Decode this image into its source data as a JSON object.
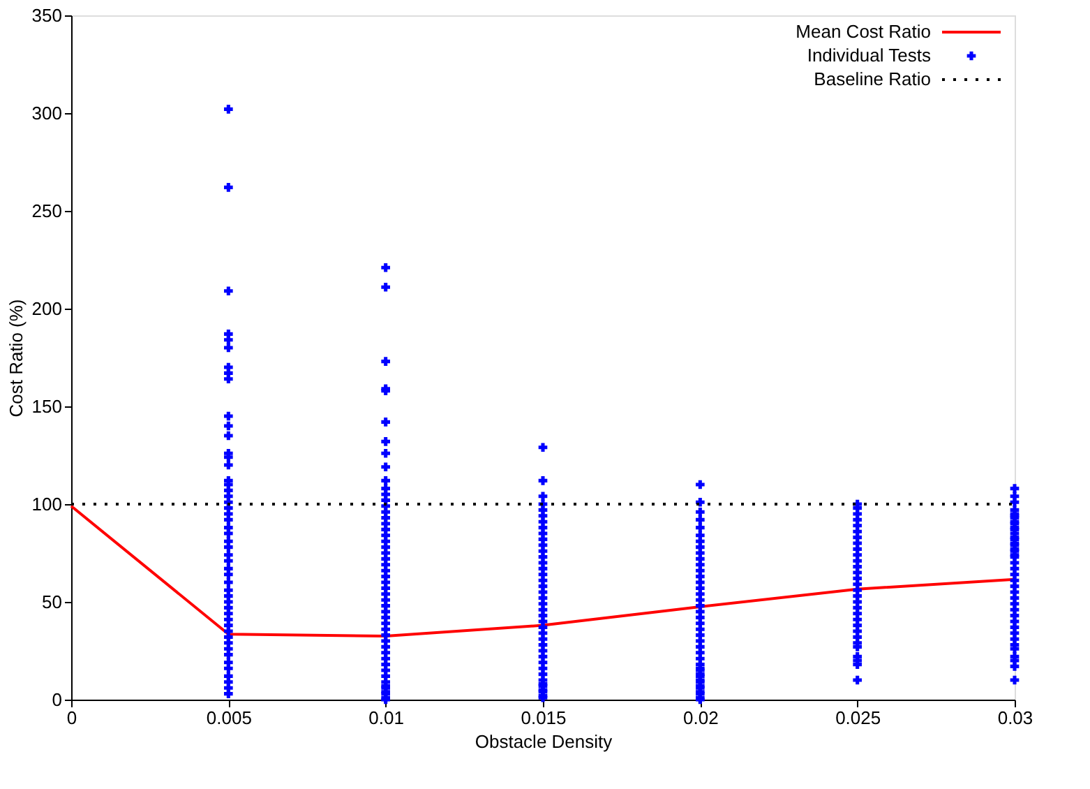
{
  "chart_data": {
    "type": "scatter",
    "xlabel": "Obstacle Density",
    "ylabel": "Cost Ratio (%)",
    "xlim": [
      0,
      0.03
    ],
    "xticks": [
      0,
      0.005,
      0.01,
      0.015,
      0.02,
      0.025,
      0.03
    ],
    "ylim": [
      0,
      350
    ],
    "yticks": [
      0,
      50,
      100,
      150,
      200,
      250,
      300,
      350
    ],
    "grid": false,
    "legend": "top right",
    "series": [
      {
        "name": "Mean Cost Ratio",
        "type": "line",
        "color": "#ff0000",
        "marker": "none",
        "line_style": "solid",
        "x": [
          0,
          0.005,
          0.01,
          0.015,
          0.02,
          0.025,
          0.03
        ],
        "values": [
          99,
          33.5,
          32.5,
          38,
          47.5,
          56.5,
          61.5
        ]
      },
      {
        "name": "Individual Tests",
        "color": "#0000ff",
        "marker": "cross",
        "x": [
          0.005,
          0.005,
          0.005,
          0.005,
          0.005,
          0.005,
          0.005,
          0.005,
          0.005,
          0.005,
          0.005,
          0.005,
          0.005,
          0.005,
          0.005,
          0.005,
          0.005,
          0.005,
          0.005,
          0.005,
          0.005,
          0.005,
          0.005,
          0.005,
          0.005,
          0.005,
          0.005,
          0.005,
          0.005,
          0.005,
          0.005,
          0.005,
          0.005,
          0.005,
          0.005,
          0.005,
          0.005,
          0.005,
          0.005,
          0.005,
          0.005,
          0.005,
          0.005,
          0.005,
          0.005,
          0.005,
          0.005,
          0.005,
          0.005,
          0.005,
          0.01,
          0.01,
          0.01,
          0.01,
          0.01,
          0.01,
          0.01,
          0.01,
          0.01,
          0.01,
          0.01,
          0.01,
          0.01,
          0.01,
          0.01,
          0.01,
          0.01,
          0.01,
          0.01,
          0.01,
          0.01,
          0.01,
          0.01,
          0.01,
          0.01,
          0.01,
          0.01,
          0.01,
          0.01,
          0.01,
          0.01,
          0.01,
          0.01,
          0.01,
          0.01,
          0.01,
          0.01,
          0.01,
          0.01,
          0.01,
          0.01,
          0.01,
          0.01,
          0.01,
          0.01,
          0.01,
          0.01,
          0.01,
          0.01,
          0.01,
          0.015,
          0.015,
          0.015,
          0.015,
          0.015,
          0.015,
          0.015,
          0.015,
          0.015,
          0.015,
          0.015,
          0.015,
          0.015,
          0.015,
          0.015,
          0.015,
          0.015,
          0.015,
          0.015,
          0.015,
          0.015,
          0.015,
          0.015,
          0.015,
          0.015,
          0.015,
          0.015,
          0.015,
          0.015,
          0.015,
          0.015,
          0.015,
          0.015,
          0.015,
          0.015,
          0.015,
          0.015,
          0.015,
          0.015,
          0.015,
          0.02,
          0.02,
          0.02,
          0.02,
          0.02,
          0.02,
          0.02,
          0.02,
          0.02,
          0.02,
          0.02,
          0.02,
          0.02,
          0.02,
          0.02,
          0.02,
          0.02,
          0.02,
          0.02,
          0.02,
          0.02,
          0.02,
          0.02,
          0.02,
          0.02,
          0.02,
          0.02,
          0.02,
          0.02,
          0.02,
          0.02,
          0.02,
          0.02,
          0.02,
          0.02,
          0.02,
          0.02,
          0.02,
          0.02,
          0.02,
          0.025,
          0.025,
          0.025,
          0.025,
          0.025,
          0.025,
          0.025,
          0.025,
          0.025,
          0.025,
          0.025,
          0.025,
          0.025,
          0.025,
          0.025,
          0.025,
          0.025,
          0.025,
          0.025,
          0.025,
          0.025,
          0.025,
          0.025,
          0.025,
          0.025,
          0.025,
          0.025,
          0.025,
          0.025,
          0.025,
          0.03,
          0.03,
          0.03,
          0.03,
          0.03,
          0.03,
          0.03,
          0.03,
          0.03,
          0.03,
          0.03,
          0.03,
          0.03,
          0.03,
          0.03,
          0.03,
          0.03,
          0.03,
          0.03,
          0.03,
          0.03,
          0.03,
          0.03,
          0.03,
          0.03,
          0.03,
          0.03,
          0.03,
          0.03,
          0.03,
          0.03,
          0.03,
          0.03,
          0.03,
          0.03,
          0.03,
          0.03,
          0.03,
          0.03,
          0.03
        ],
        "values": [
          302,
          262,
          209,
          187,
          184,
          180,
          170,
          167,
          164,
          145,
          140,
          135,
          126,
          124,
          120,
          112,
          110,
          107,
          104,
          101,
          98,
          95,
          92,
          88,
          85,
          81,
          78,
          74,
          71,
          67,
          64,
          60,
          56,
          53,
          50,
          47,
          44,
          41,
          38,
          35,
          32,
          29,
          26,
          23,
          19,
          16,
          12,
          9,
          6,
          3,
          221,
          211,
          173,
          159,
          158,
          142,
          132,
          126,
          119,
          112,
          108,
          105,
          102,
          99,
          96,
          93,
          90,
          87,
          84,
          81,
          78,
          75,
          72,
          69,
          66,
          63,
          60,
          57,
          54,
          51,
          48,
          45,
          42,
          39,
          36,
          33,
          30,
          27,
          24,
          21,
          18,
          15,
          12,
          9,
          6,
          3,
          0,
          1,
          4,
          7,
          129,
          112,
          104,
          100,
          97,
          94,
          91,
          88,
          85,
          82,
          79,
          76,
          73,
          70,
          67,
          64,
          61,
          58,
          55,
          52,
          49,
          46,
          43,
          40,
          37,
          34,
          31,
          28,
          25,
          22,
          19,
          16,
          13,
          10,
          7,
          4,
          1,
          2,
          5,
          8,
          110,
          101,
          96,
          92,
          88,
          84,
          81,
          78,
          75,
          72,
          69,
          66,
          63,
          60,
          57,
          54,
          51,
          48,
          45,
          42,
          39,
          36,
          33,
          30,
          27,
          24,
          21,
          18,
          15,
          12,
          9,
          6,
          3,
          0,
          1,
          4,
          7,
          10,
          13,
          16,
          100,
          98,
          95,
          92,
          89,
          86,
          83,
          80,
          77,
          74,
          71,
          68,
          65,
          62,
          59,
          56,
          53,
          50,
          47,
          44,
          41,
          38,
          35,
          32,
          29,
          27,
          22,
          20,
          18,
          10,
          108,
          104,
          101,
          97,
          94,
          91,
          88,
          85,
          82,
          79,
          76,
          73,
          70,
          67,
          64,
          61,
          58,
          55,
          52,
          49,
          46,
          43,
          40,
          37,
          34,
          31,
          28,
          26,
          22,
          20,
          17,
          10,
          95,
          93,
          90,
          87,
          83,
          80,
          77,
          74
        ]
      }
    ],
    "ref_lines": [
      {
        "axis": "y",
        "value": 100,
        "label": "Baseline Ratio",
        "color": "#000000",
        "line_style": "dotted"
      }
    ]
  }
}
